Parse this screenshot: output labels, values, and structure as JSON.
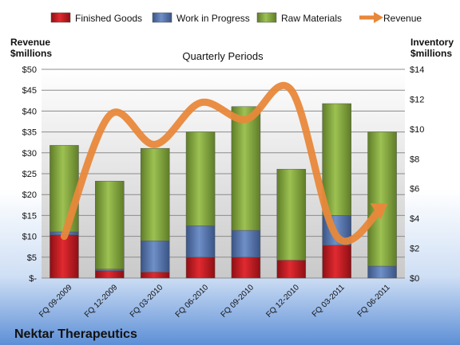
{
  "chart_data": {
    "type": "bar",
    "stacked": true,
    "title": "Quarterly Periods",
    "company": "Nektar Therapeutics",
    "ylabel_left": [
      "Revenue",
      "$millions"
    ],
    "ylabel_right": [
      "Inventory",
      "$millions"
    ],
    "categories": [
      "FQ 09-2009",
      "FQ 12-2009",
      "FQ 03-2010",
      "FQ 06-2010",
      "FQ 09-2010",
      "FQ 12-2010",
      "FQ 03-2011",
      "FQ 06-2011"
    ],
    "left_axis": {
      "min": 0,
      "max": 50,
      "step": 5,
      "tick_labels": [
        "$-",
        "$5",
        "$10",
        "$15",
        "$20",
        "$25",
        "$30",
        "$35",
        "$40",
        "$45",
        "$50"
      ]
    },
    "right_axis": {
      "min": 0,
      "max": 14,
      "step": 2,
      "tick_labels": [
        "$0",
        "$2",
        "$4",
        "$6",
        "$8",
        "$10",
        "$12",
        "$14"
      ]
    },
    "series": [
      {
        "name": "Finished Goods",
        "axis": "right",
        "kind": "bar",
        "color": "#c0141c",
        "values": [
          2.9,
          0.5,
          0.4,
          1.4,
          1.4,
          1.2,
          2.2,
          0.0
        ]
      },
      {
        "name": "Work in Progress",
        "axis": "right",
        "kind": "bar",
        "color": "#4f6fa8",
        "values": [
          0.2,
          0.1,
          2.1,
          2.1,
          1.8,
          0.0,
          2.0,
          0.8
        ]
      },
      {
        "name": "Raw Materials",
        "axis": "right",
        "kind": "bar",
        "color": "#86a83f",
        "values": [
          5.8,
          5.9,
          6.2,
          6.3,
          8.3,
          6.1,
          7.5,
          9.0
        ]
      },
      {
        "name": "Revenue",
        "axis": "left",
        "kind": "line",
        "color": "#e8883a",
        "values": [
          10,
          39,
          32,
          42,
          38,
          45,
          10,
          17
        ]
      }
    ],
    "grid": true,
    "legend_position": "top"
  }
}
